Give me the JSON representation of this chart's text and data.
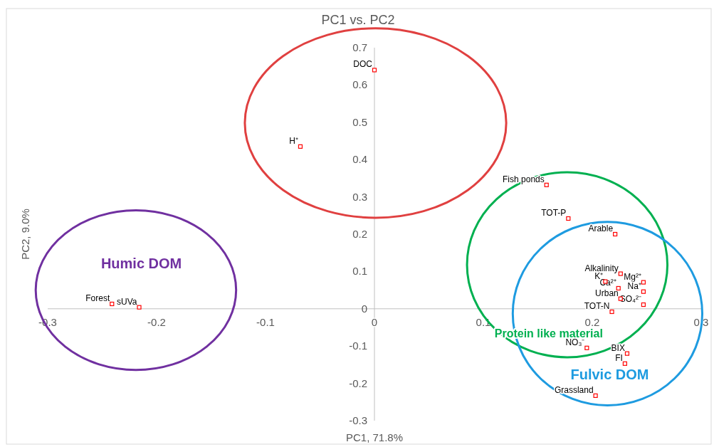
{
  "chart_data": {
    "type": "scatter",
    "title": "PC1 vs. PC2",
    "xlabel": "PC1, 71.8%",
    "ylabel": "PC2, 9.0%",
    "xlim": [
      -0.3,
      0.3
    ],
    "xticks": [
      -0.3,
      -0.2,
      -0.1,
      0,
      0.1,
      0.2,
      0.3
    ],
    "ylim": [
      -0.3,
      0.7
    ],
    "yticks": [
      -0.3,
      -0.2,
      -0.1,
      0,
      0.1,
      0.2,
      0.3,
      0.4,
      0.5,
      0.6,
      0.7
    ],
    "grid": false,
    "marker": "square",
    "series": [
      {
        "color": "#ff0000",
        "x": [
          0.0,
          -0.068,
          -0.241,
          -0.216,
          0.158,
          0.178,
          0.221,
          0.226,
          0.212,
          0.247,
          0.224,
          0.247,
          0.226,
          0.247,
          0.218,
          0.195,
          0.232,
          0.23,
          0.203
        ],
        "values": [
          0.64,
          0.435,
          0.013,
          0.004,
          0.332,
          0.242,
          0.2,
          0.094,
          0.073,
          0.071,
          0.055,
          0.046,
          0.027,
          0.011,
          -0.008,
          -0.105,
          -0.12,
          -0.147,
          -0.233
        ]
      }
    ],
    "annotations": [
      {
        "text": "DOC",
        "x": 0.0,
        "y": 0.64
      },
      {
        "text": "H⁺",
        "x": -0.068,
        "y": 0.435
      },
      {
        "text": "Forest",
        "x": -0.241,
        "y": 0.013
      },
      {
        "text": "sUVa",
        "x": -0.216,
        "y": 0.004
      },
      {
        "text": "Fish ponds",
        "x": 0.158,
        "y": 0.332
      },
      {
        "text": "TOT-P",
        "x": 0.178,
        "y": 0.242
      },
      {
        "text": "Arable",
        "x": 0.221,
        "y": 0.2
      },
      {
        "text": "Alkalinity",
        "x": 0.226,
        "y": 0.094
      },
      {
        "text": "K⁺",
        "x": 0.212,
        "y": 0.073
      },
      {
        "text": "Mg²⁺",
        "x": 0.247,
        "y": 0.071
      },
      {
        "text": "Ca²⁺",
        "x": 0.224,
        "y": 0.055
      },
      {
        "text": "Na⁺",
        "x": 0.247,
        "y": 0.046
      },
      {
        "text": "Urban",
        "x": 0.226,
        "y": 0.027
      },
      {
        "text": "SO₄²⁻",
        "x": 0.247,
        "y": 0.011
      },
      {
        "text": "TOT-N",
        "x": 0.218,
        "y": -0.008
      },
      {
        "text": "NO₃⁻",
        "x": 0.195,
        "y": -0.105
      },
      {
        "text": "BIX",
        "x": 0.232,
        "y": -0.12
      },
      {
        "text": "FI",
        "x": 0.23,
        "y": -0.147
      },
      {
        "text": "Grassland",
        "x": 0.203,
        "y": -0.233
      },
      "Humic DOM",
      "Protein like material",
      "Fulvic DOM"
    ]
  }
}
